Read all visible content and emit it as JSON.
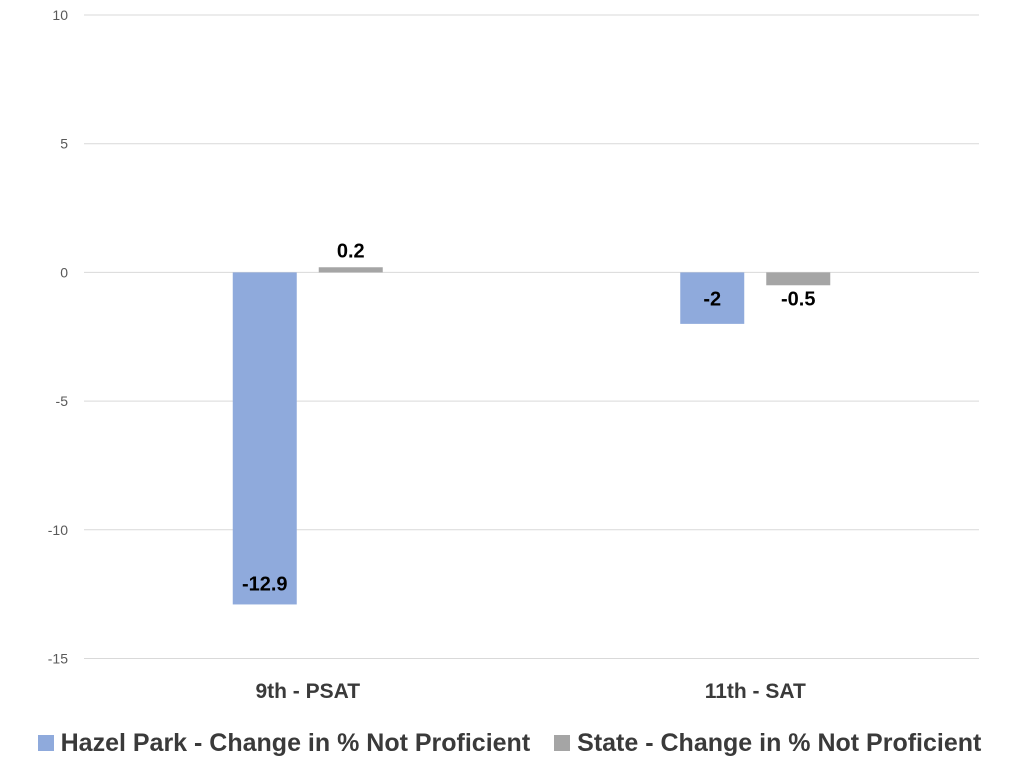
{
  "chart_data": {
    "type": "bar",
    "categories": [
      "9th - PSAT",
      "11th - SAT"
    ],
    "series": [
      {
        "name": "Hazel Park - Change in % Not Proficient",
        "values": [
          -12.9,
          -2
        ],
        "labels": [
          "-12.9",
          "-2"
        ],
        "color": "#8faadc"
      },
      {
        "name": "State - Change in % Not Proficient",
        "values": [
          0.2,
          -0.5
        ],
        "labels": [
          "0.2",
          "-0.5"
        ],
        "color": "#a5a5a5"
      }
    ],
    "ylim": [
      -15,
      10
    ],
    "yticks": [
      10,
      5,
      0,
      -5,
      -10,
      -15
    ],
    "grid": true,
    "legend_position": "bottom",
    "title": "",
    "xlabel": "",
    "ylabel": ""
  }
}
